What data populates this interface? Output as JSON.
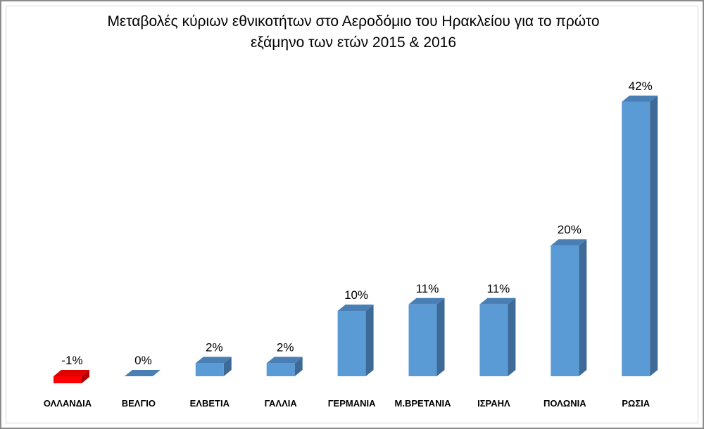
{
  "chart_data": {
    "type": "bar",
    "title_line1": "Μεταβολές κύριων εθνικοτήτων στο Αεροδόμιο του Ηρακλείου για το πρώτο",
    "title_line2": "εξάμηνο των ετών 2015 & 2016",
    "categories": [
      "ΟΛΛΑΝΔΙΑ",
      "ΒΕΛΓΙΟ",
      "ΕΛΒΕΤΙΑ",
      "ΓΑΛΛΙΑ",
      "ΓΕΡΜΑΝΙΑ",
      "Μ.ΒΡΕΤΑΝΙΑ",
      "ΙΣΡΑΗΛ",
      "ΠΟΛΩΝΙΑ",
      "ΡΩΣΙΑ"
    ],
    "values": [
      -1,
      0,
      2,
      2,
      10,
      11,
      11,
      20,
      42
    ],
    "value_labels": [
      "-1%",
      "0%",
      "2%",
      "2%",
      "10%",
      "11%",
      "11%",
      "20%",
      "42%"
    ],
    "unit": "%",
    "bar_style": "3d-column",
    "ylim": [
      -1,
      42
    ],
    "gridlines": false,
    "legend": "none",
    "colors": {
      "positive_front": "#5b9bd5",
      "positive_top": "#4a7fb5",
      "positive_side": "#3e6a97",
      "negative_front": "#ff0000",
      "negative_top": "#e00000",
      "negative_side": "#b00000"
    }
  }
}
